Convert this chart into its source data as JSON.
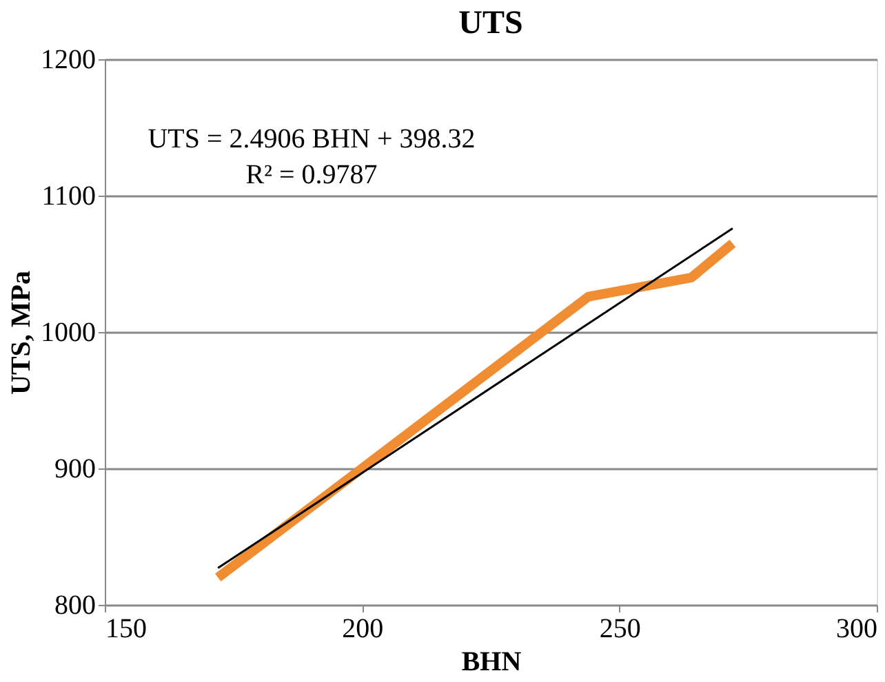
{
  "chart_data": {
    "type": "line",
    "title": "UTS",
    "xlabel": "BHN",
    "ylabel": "UTS, MPa",
    "xlim": [
      150,
      300
    ],
    "xticks": [
      150,
      200,
      250,
      300
    ],
    "ylim": [
      800,
      1200
    ],
    "yticks": [
      800,
      900,
      1000,
      1100,
      1200
    ],
    "grid": "y",
    "line_style": "solid",
    "series": [
      {
        "color": "#f08c32",
        "x": [
          172,
          244,
          264,
          272
        ],
        "values": [
          820,
          1026,
          1040,
          1065
        ]
      },
      {
        "type": "line",
        "color": "#000000",
        "x": [
          172,
          272
        ],
        "values": [
          827,
          1076
        ]
      }
    ],
    "annotations": [
      "UTS = 2.4906 BHN + 398.32",
      "R² = 0.9787"
    ]
  }
}
